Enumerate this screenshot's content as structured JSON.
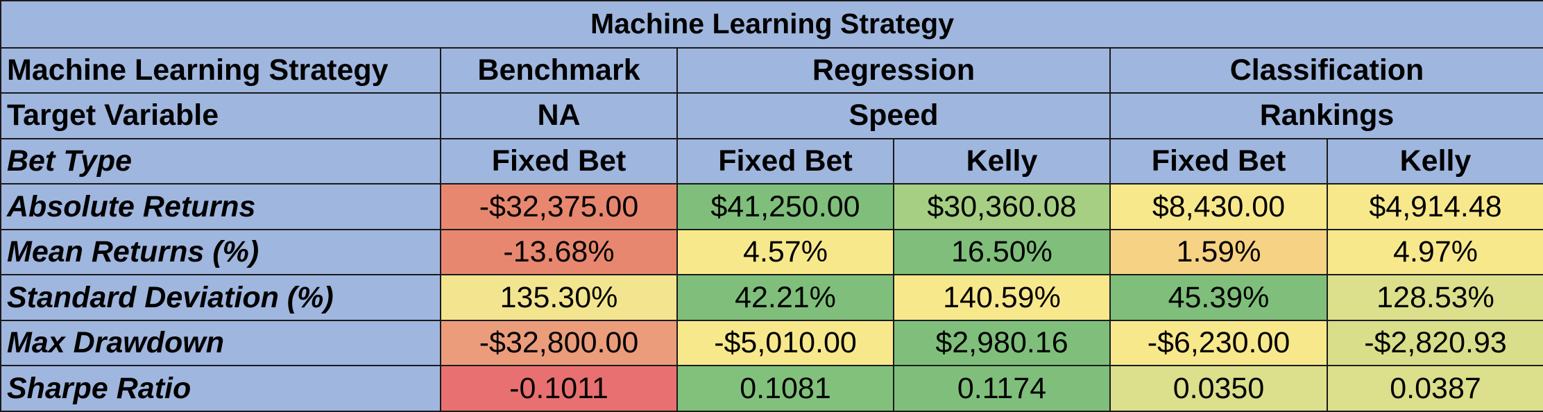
{
  "title": "Machine Learning Strategy",
  "header_rows": [
    {
      "label": "Machine Learning Strategy",
      "italic": false,
      "cells": [
        {
          "text": "Benchmark",
          "span": 1
        },
        {
          "text": "Regression",
          "span": 2
        },
        {
          "text": "Classification",
          "span": 2
        }
      ]
    },
    {
      "label": "Target Variable",
      "italic": false,
      "cells": [
        {
          "text": "NA",
          "span": 1
        },
        {
          "text": "Speed",
          "span": 2
        },
        {
          "text": "Rankings",
          "span": 2
        }
      ]
    },
    {
      "label": "Bet Type",
      "italic": true,
      "cells": [
        {
          "text": "Fixed Bet",
          "span": 1
        },
        {
          "text": "Fixed Bet",
          "span": 1
        },
        {
          "text": "Kelly",
          "span": 1
        },
        {
          "text": "Fixed Bet",
          "span": 1
        },
        {
          "text": "Kelly",
          "span": 1
        }
      ]
    }
  ],
  "data_rows": [
    {
      "label": "Absolute Returns",
      "values": [
        "-$32,375.00",
        "$41,250.00",
        "$30,360.08",
        "$8,430.00",
        "$4,914.48"
      ],
      "colors": [
        "#e8876f",
        "#7fbf7b",
        "#a6cf84",
        "#f8e88c",
        "#f8e88c"
      ]
    },
    {
      "label": "Mean Returns (%)",
      "values": [
        "-13.68%",
        "4.57%",
        "16.50%",
        "1.59%",
        "4.97%"
      ],
      "colors": [
        "#e8876f",
        "#f8e88c",
        "#7fbf7b",
        "#f5d284",
        "#f8e88c"
      ]
    },
    {
      "label": "Standard Deviation (%)",
      "values": [
        "135.30%",
        "42.21%",
        "140.59%",
        "45.39%",
        "128.53%"
      ],
      "colors": [
        "#f3e58f",
        "#7fbf7b",
        "#f8e88c",
        "#7fbf7b",
        "#dcdf8b"
      ]
    },
    {
      "label": "Max Drawdown",
      "values": [
        "-$32,800.00",
        "-$5,010.00",
        "$2,980.16",
        "-$6,230.00",
        "-$2,820.93"
      ],
      "colors": [
        "#eb9c7b",
        "#f8e88c",
        "#7fbf7b",
        "#f8e88c",
        "#d8de89"
      ]
    },
    {
      "label": "Sharpe Ratio",
      "values": [
        "-0.1011",
        "0.1081",
        "0.1174",
        "0.0350",
        "0.0387"
      ],
      "colors": [
        "#e87070",
        "#82c17c",
        "#7fbf7b",
        "#dcdf8b",
        "#dcdf8b"
      ]
    }
  ]
}
